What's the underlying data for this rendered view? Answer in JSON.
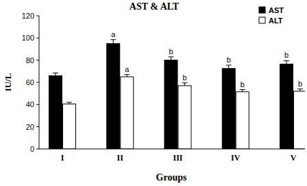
{
  "chart_data": {
    "type": "bar",
    "title": "AST & ALT",
    "x_label": "Groups",
    "y_label": "IU/L",
    "categories": [
      "I",
      "II",
      "III",
      "IV",
      "V"
    ],
    "series": [
      {
        "name": "AST",
        "color": "#000000",
        "values": [
          66,
          95,
          80,
          72.5,
          76.5
        ],
        "errors": [
          2.5,
          3.5,
          3,
          3,
          3
        ],
        "letters": [
          null,
          "a",
          "b",
          "b",
          "b"
        ]
      },
      {
        "name": "ALT",
        "color": "#ffffff",
        "values": [
          40.5,
          65,
          57,
          51.5,
          52
        ],
        "errors": [
          1.5,
          2,
          2.5,
          2,
          2
        ],
        "letters": [
          null,
          "a",
          "b",
          "b",
          "b"
        ]
      }
    ],
    "ylim": [
      0,
      120
    ],
    "yticks": [
      0,
      20,
      40,
      60,
      80,
      100,
      120
    ],
    "grid": false,
    "legend": "upper right"
  }
}
